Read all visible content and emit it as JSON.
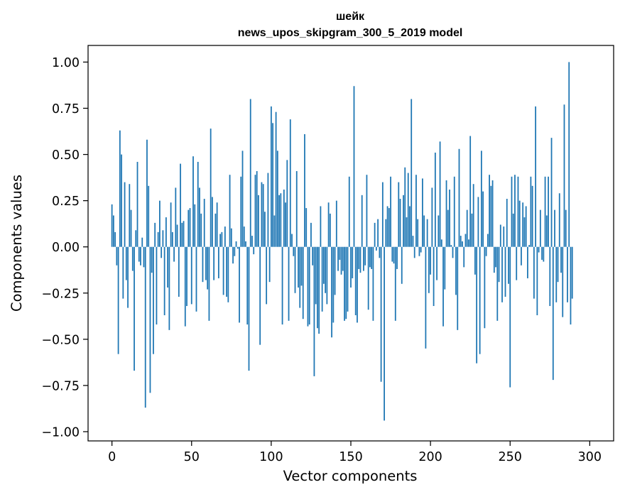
{
  "chart_data": {
    "type": "bar",
    "title": "шейк",
    "subtitle": "news_upos_skipgram_300_5_2019 model",
    "xlabel": "Vector components",
    "ylabel": "Components values",
    "xlim": [
      -15,
      315
    ],
    "ylim": [
      -1.05,
      1.09
    ],
    "xticks": [
      {
        "value": 0,
        "label": "0"
      },
      {
        "value": 50,
        "label": "50"
      },
      {
        "value": 100,
        "label": "100"
      },
      {
        "value": 150,
        "label": "150"
      },
      {
        "value": 200,
        "label": "200"
      },
      {
        "value": 250,
        "label": "250"
      },
      {
        "value": 300,
        "label": "300"
      }
    ],
    "yticks": [
      {
        "value": 1.0,
        "label": "1.00"
      },
      {
        "value": 0.75,
        "label": "0.75"
      },
      {
        "value": 0.5,
        "label": "0.50"
      },
      {
        "value": 0.25,
        "label": "0.25"
      },
      {
        "value": 0.0,
        "label": "0.00"
      },
      {
        "value": -0.25,
        "label": "−0.25"
      },
      {
        "value": -0.5,
        "label": "−0.50"
      },
      {
        "value": -0.75,
        "label": "−0.75"
      },
      {
        "value": -1.0,
        "label": "−1.00"
      }
    ],
    "grid": false,
    "bar_color": "#1f77b4",
    "values": [
      0.23,
      0.17,
      0.08,
      -0.1,
      -0.58,
      0.63,
      0.5,
      -0.28,
      0.35,
      -0.18,
      -0.33,
      0.34,
      0.2,
      -0.13,
      -0.67,
      0.09,
      0.46,
      -0.08,
      -0.1,
      0.05,
      -0.11,
      -0.87,
      0.58,
      0.33,
      -0.79,
      -0.14,
      -0.58,
      0.13,
      -0.42,
      0.08,
      0.25,
      -0.06,
      0.09,
      -0.37,
      0.16,
      -0.22,
      -0.45,
      0.24,
      0.08,
      -0.08,
      0.32,
      0.12,
      -0.27,
      0.45,
      0.13,
      0.14,
      -0.43,
      -0.32,
      0.2,
      0.21,
      -0.31,
      0.49,
      0.23,
      -0.35,
      0.46,
      0.32,
      0.18,
      -0.19,
      0.26,
      -0.18,
      -0.23,
      -0.4,
      0.64,
      0.27,
      -0.18,
      0.18,
      0.24,
      -0.17,
      0.07,
      0.08,
      -0.26,
      0.11,
      -0.27,
      -0.3,
      0.39,
      0.1,
      -0.09,
      -0.05,
      0.03,
      -0.01,
      -0.41,
      0.38,
      0.52,
      0.11,
      0.03,
      -0.42,
      -0.67,
      0.8,
      0.06,
      -0.04,
      0.39,
      0.41,
      0.28,
      -0.53,
      0.35,
      0.34,
      0.19,
      -0.31,
      0.4,
      -0.19,
      0.76,
      0.67,
      0.17,
      0.73,
      0.52,
      0.28,
      0.29,
      -0.42,
      0.31,
      0.24,
      0.47,
      -0.4,
      0.69,
      0.07,
      -0.05,
      -0.25,
      0.41,
      -0.22,
      -0.33,
      -0.21,
      -0.39,
      0.61,
      0.21,
      -0.43,
      -0.42,
      0.13,
      -0.1,
      -0.7,
      -0.31,
      -0.44,
      -0.47,
      0.22,
      -0.35,
      -0.2,
      -0.25,
      -0.31,
      0.24,
      0.18,
      -0.49,
      -0.41,
      -0.26,
      0.25,
      -0.13,
      -0.07,
      -0.15,
      -0.13,
      -0.4,
      -0.39,
      -0.35,
      0.38,
      -0.22,
      -0.17,
      0.87,
      -0.37,
      -0.41,
      -0.12,
      -0.14,
      0.28,
      -0.13,
      -0.1,
      0.39,
      -0.34,
      -0.11,
      -0.12,
      -0.4,
      0.13,
      -0.02,
      0.15,
      -0.06,
      -0.73,
      0.35,
      -0.94,
      0.15,
      0.22,
      0.21,
      0.38,
      -0.08,
      -0.09,
      -0.4,
      -0.12,
      0.35,
      0.26,
      -0.2,
      0.28,
      0.43,
      0.16,
      0.4,
      0.22,
      0.8,
      0.06,
      -0.06,
      0.39,
      0.15,
      -0.05,
      -0.03,
      0.37,
      0.17,
      -0.55,
      0.15,
      -0.25,
      -0.15,
      0.32,
      -0.32,
      0.51,
      -0.18,
      0.17,
      0.57,
      0.04,
      -0.43,
      -0.23,
      0.36,
      0.2,
      0.31,
      0.01,
      -0.06,
      0.38,
      -0.26,
      -0.45,
      0.53,
      0.06,
      0.03,
      -0.11,
      0.07,
      0.2,
      0.04,
      0.6,
      0.18,
      0.34,
      -0.15,
      -0.63,
      0.27,
      -0.58,
      0.52,
      0.3,
      -0.44,
      -0.05,
      0.07,
      0.39,
      0.33,
      0.36,
      -0.14,
      -0.11,
      -0.4,
      -0.19,
      0.12,
      -0.3,
      0.11,
      -0.27,
      0.26,
      -0.2,
      -0.76,
      0.38,
      0.18,
      0.39,
      -0.18,
      0.38,
      0.25,
      -0.1,
      0.24,
      0.16,
      0.22,
      -0.17,
      0.01,
      0.38,
      0.33,
      -0.28,
      0.76,
      -0.37,
      -0.03,
      0.2,
      -0.07,
      -0.08,
      0.38,
      0.17,
      0.38,
      -0.32,
      0.59,
      -0.72,
      0.2,
      -0.3,
      -0.19,
      0.29,
      -0.14,
      -0.38,
      0.77,
      0.2,
      -0.3,
      1.0,
      -0.42,
      -0.28
    ]
  }
}
